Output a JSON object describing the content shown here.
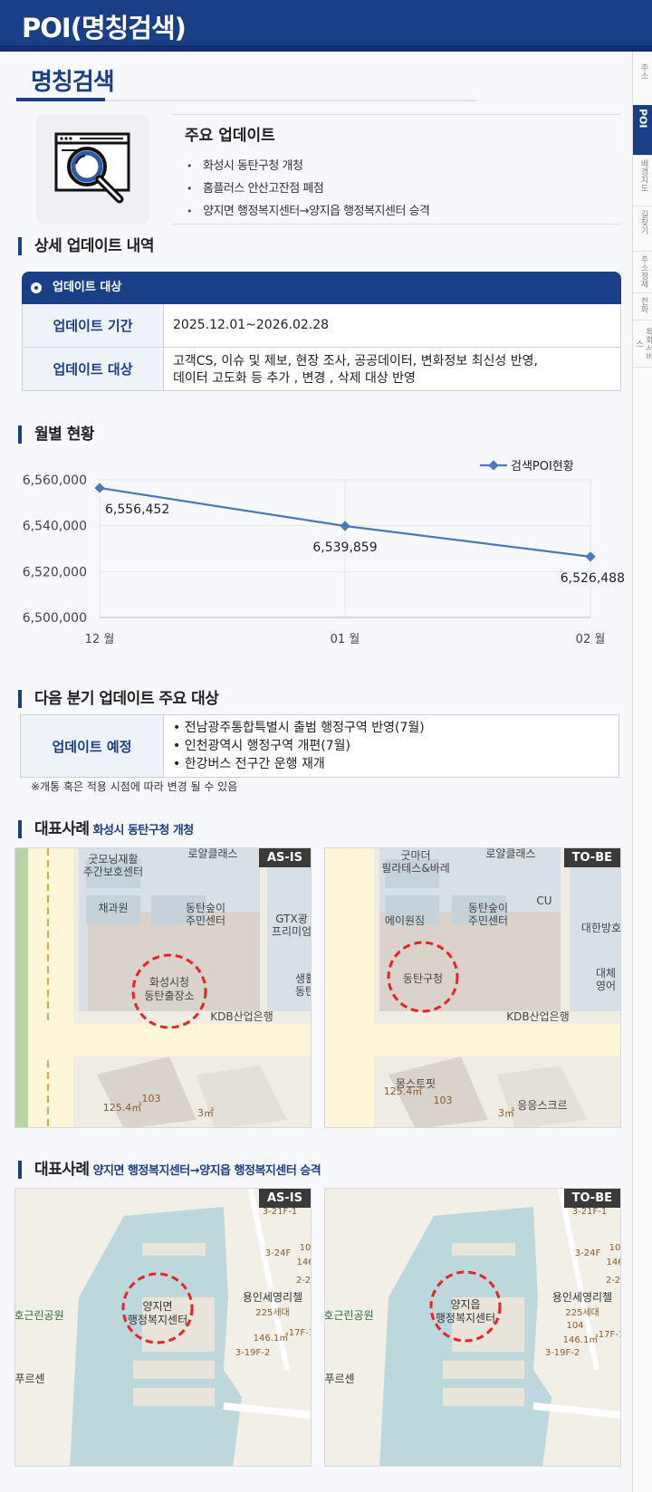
{
  "header": {
    "title": "POI(명칭검색)"
  },
  "side_tabs": [
    {
      "label": "주소",
      "active": false
    },
    {
      "label": "POI",
      "active": true
    },
    {
      "label": "배경지도",
      "active": false
    },
    {
      "label": "길찾기",
      "active": false
    },
    {
      "label": "주소정제",
      "active": false
    },
    {
      "label": "전화",
      "active": false
    },
    {
      "label": "특화서비스",
      "active": false
    }
  ],
  "section": {
    "title": "명칭검색"
  },
  "main_updates": {
    "title": "주요 업데이트",
    "items": [
      "화성시 동탄구청 개청",
      "홈플러스 안산고잔점 폐점",
      "양지면 행정복지센터→양지읍 행정복지센터 승격"
    ]
  },
  "detail": {
    "heading": "상세 업데이트 내역",
    "box_title": "업데이트 대상",
    "rows": [
      {
        "label": "업데이트 기간",
        "value": "2025.12.01~2026.02.28"
      },
      {
        "label": "업데이트 대상",
        "value_line1": "고객CS, 이슈 및 제보, 현장 조사, 공공데이터, 변화정보 최신성 반영,",
        "value_line2": "데이터 고도화 등 추가 , 변경 , 삭제 대상 반영"
      }
    ]
  },
  "monthly": {
    "heading": "월별 현황"
  },
  "chart_data": {
    "type": "line",
    "categories": [
      "12 월",
      "01 월",
      "02 월"
    ],
    "series": [
      {
        "name": "검색POI현황",
        "values": [
          6556452,
          6539859,
          6526488
        ]
      }
    ],
    "data_labels": [
      "6,556,452",
      "6,539,859",
      "6,526,488"
    ],
    "y_ticks": [
      "6,500,000",
      "6,520,000",
      "6,540,000",
      "6,560,000"
    ],
    "ylim": [
      6500000,
      6560000
    ],
    "legend": "top-right",
    "grid": true,
    "color": "#4a78b8"
  },
  "next_quarter": {
    "heading": "다음 분기 업데이트 주요 대상",
    "label": "업데이트 예정",
    "items": [
      "• 전남광주통합특별시 출범 행정구역 반영(7월)",
      "• 인천광역시 행정구역 개편(7월)",
      "• 한강버스 전구간 운행 재개"
    ],
    "note": "※개통 혹은 적용 시점에 따라 변경 될 수 있음"
  },
  "case1": {
    "heading": "대표사례",
    "sub": "화성시 동탄구청 개청",
    "as_is": {
      "badge": "AS-IS",
      "labels": [
        "굿모닝재활",
        "주간보호센터",
        "로얄클래스",
        "채과원",
        "동탄숲이",
        "주민센터",
        "GTX광",
        "프리미엄",
        "화성시청",
        "동탄출장소",
        "KDB산업은행",
        "생활",
        "동탄",
        "103",
        "125.4㎡",
        "3㎡"
      ]
    },
    "to_be": {
      "badge": "TO-BE",
      "labels": [
        "굿마더",
        "필라테스&바레",
        "로얄클래스",
        "에이원짐",
        "동탄숲이",
        "주민센터",
        "CU",
        "대한방호",
        "동탄구청",
        "대체",
        "영어",
        "KDB산업은행",
        "몽스트핏",
        "응응스크르",
        "103",
        "125.4㎡",
        "3㎡"
      ]
    }
  },
  "case2": {
    "heading": "대표사례",
    "sub": "양지면 행정복지센터→양지읍 행정복지센터 승격",
    "as_is": {
      "badge": "AS-IS",
      "labels": [
        "양지면",
        "행정복지센터",
        "호근린공원",
        "푸르센",
        "용인세영리첼",
        "225세대",
        "3-21F-1",
        "3-24F",
        "10",
        "146",
        "2-2",
        "146.1㎡",
        "17F-1",
        "3-19F-2"
      ]
    },
    "to_be": {
      "badge": "TO-BE",
      "labels": [
        "양지읍",
        "행정복지센터",
        "호근린공원",
        "푸르센",
        "용인세영리첼",
        "225세대",
        "3-21F-1",
        "3-24F",
        "10",
        "146",
        "2-2",
        "104",
        "146.1㎡",
        "17F-1",
        "3-19F-2"
      ]
    }
  }
}
